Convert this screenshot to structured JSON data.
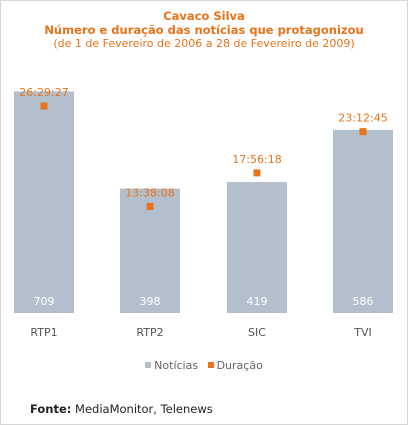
{
  "header": {
    "title": "Cavaco Silva",
    "subtitle": "Número e duração das notícias que protagonizou",
    "period": "(de 1 de Fevereiro de 2006 a 28 de Fevereiro de 2009)"
  },
  "chart_data": {
    "type": "bar",
    "categories": [
      "RTP1",
      "RTP2",
      "SIC",
      "TVI"
    ],
    "series": [
      {
        "name": "Notícias",
        "type": "bar",
        "values": [
          709,
          398,
          419,
          586
        ],
        "color": "#b3bfcd"
      },
      {
        "name": "Duração",
        "type": "point",
        "values": [
          "26:29:27",
          "13:38:08",
          "17:56:18",
          "23:12:45"
        ],
        "color": "#e8731a"
      }
    ],
    "bar_ylim": [
      0,
      800
    ],
    "duration_ylim_hours": [
      0,
      32
    ],
    "legend_position": "bottom",
    "grid": false
  },
  "legend": {
    "bars_label": "Notícias",
    "points_label": "Duração"
  },
  "source": {
    "label": "Fonte:",
    "text": " MediaMonitor, Telenews"
  }
}
